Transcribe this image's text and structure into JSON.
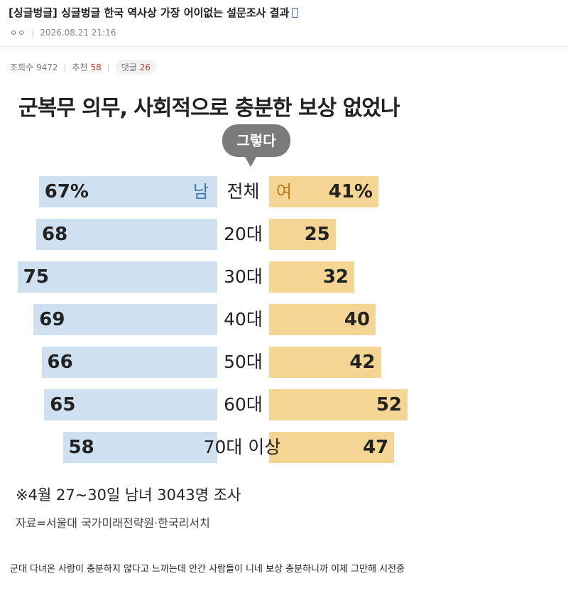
{
  "post": {
    "title": "[싱글벙글] 싱글벙글 한국 역사상 가장 어이없는 설문조사 결과",
    "author": "ㅇㅇ",
    "date": "2026.08.21 21:16",
    "views_label": "조회수",
    "views": "9472",
    "recommend_label": "추천",
    "recommend": "58",
    "comments_label": "댓글",
    "comments": "26",
    "body": "군대 다녀온 사람이 충분하지 않다고 느끼는데 안간 사람들이 니네 보상 충분하니까 이제 그만해 시전중"
  },
  "chart_data": {
    "type": "bar",
    "title": "군복무 의무, 사회적으로 충분한 보상 없었나",
    "bubble": "그렇다",
    "male_label": "남",
    "female_label": "여",
    "categories": [
      "전체",
      "20대",
      "30대",
      "40대",
      "50대",
      "60대",
      "70대 이상"
    ],
    "series": [
      {
        "name": "남",
        "values": [
          67,
          68,
          75,
          69,
          66,
          65,
          58
        ],
        "display": [
          "67%",
          "68",
          "75",
          "69",
          "66",
          "65",
          "58"
        ]
      },
      {
        "name": "여",
        "values": [
          41,
          25,
          32,
          40,
          42,
          52,
          47
        ],
        "display": [
          "41%",
          "25",
          "32",
          "40",
          "42",
          "52",
          "47"
        ]
      }
    ],
    "footnote": "※4월 27~30일 남녀 3043명 조사",
    "source": "자료=서울대 국가미래전략원·한국리서치"
  },
  "colors": {
    "male_bar": "#cfe0f1",
    "female_bar": "#f5d593",
    "male_tag": "#3a78b5",
    "female_tag": "#b8791e",
    "bubble": "#7b7b7b",
    "count_accent": "#c0392b"
  }
}
